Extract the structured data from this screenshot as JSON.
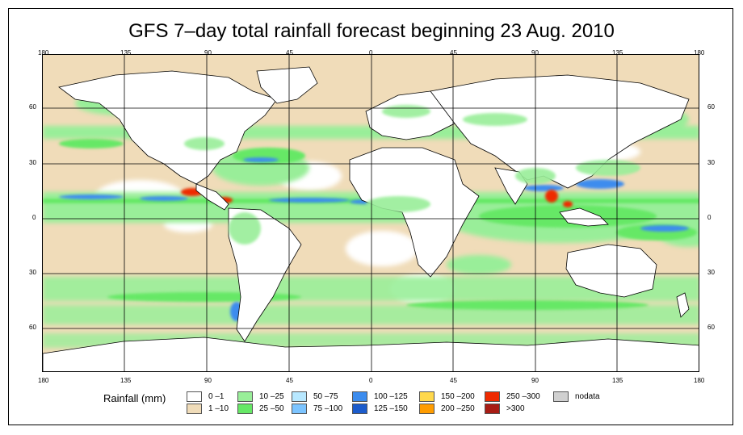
{
  "title": "GFS 7–day total rainfall forecast beginning 23 Aug. 2010",
  "longitude_labels": [
    "180",
    "135",
    "90",
    "45",
    "0",
    "45",
    "90",
    "135",
    "180"
  ],
  "latitude_labels": [
    "60",
    "30",
    "0",
    "30",
    "60"
  ],
  "legend": {
    "title": "Rainfall (mm)",
    "items": [
      {
        "label": "0 –1",
        "color": "#ffffff"
      },
      {
        "label": "1 –10",
        "color": "#f0dcb9"
      },
      {
        "label": "10 –25",
        "color": "#99ee99"
      },
      {
        "label": "25 –50",
        "color": "#66e866"
      },
      {
        "label": "50 –75",
        "color": "#b8e8ff"
      },
      {
        "label": "75 –100",
        "color": "#7cc4ff"
      },
      {
        "label": "100 –125",
        "color": "#3c8cee"
      },
      {
        "label": "125 –150",
        "color": "#1c5ccc"
      },
      {
        "label": "150 –200",
        "color": "#ffd84c"
      },
      {
        "label": "200 –250",
        "color": "#ff9c00"
      },
      {
        "label": "250 –300",
        "color": "#ee2a00"
      },
      {
        "label": ">300",
        "color": "#a81c14"
      },
      {
        "label": "nodata",
        "color": "#d0d0d0"
      }
    ]
  },
  "colors": {
    "ocean_dry": "#f0dcb9",
    "land_dry": "#ffffff",
    "rain_light": "#99ee99",
    "rain_moderate": "#66e866",
    "rain_heavy": "#3c8cee",
    "rain_extreme": "#ee2a00"
  }
}
